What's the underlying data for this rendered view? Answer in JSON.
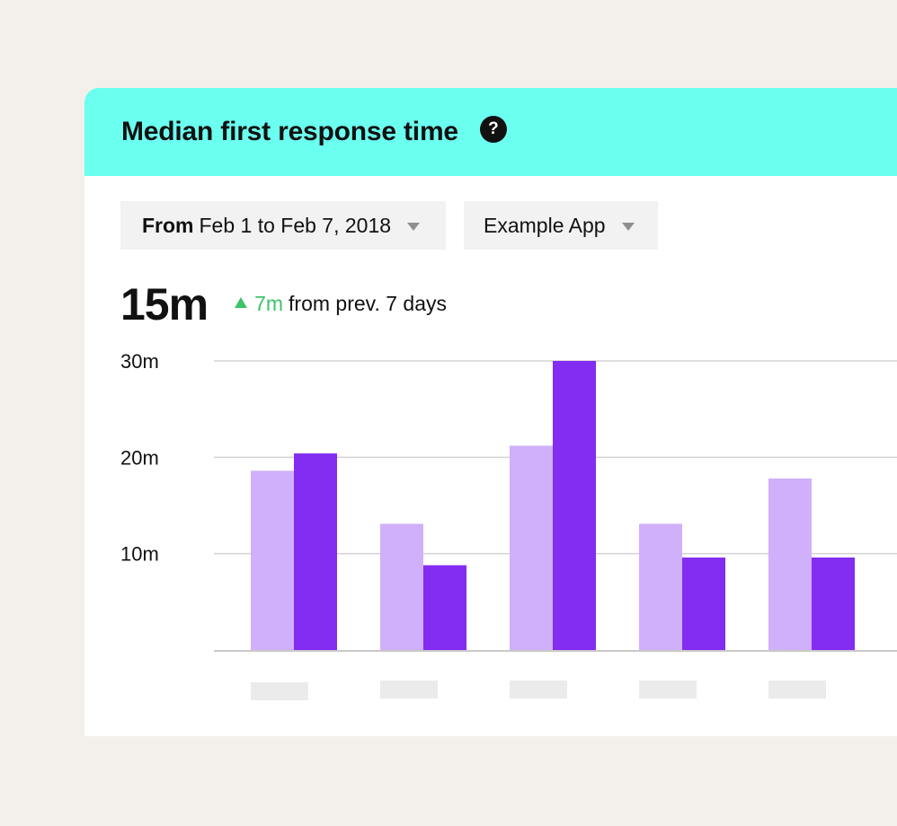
{
  "card": {
    "title": "Median first response time",
    "help_icon": "question-mark-icon",
    "header_color": "#6bfff0"
  },
  "filters": {
    "date_prefix": "From",
    "date_range": "Feb 1 to Feb 7, 2018",
    "app": "Example App"
  },
  "metric": {
    "value": "15m",
    "delta_value": "7m",
    "delta_text": "from prev. 7 days",
    "delta_direction": "up",
    "delta_color": "#3cc36a"
  },
  "chart_data": {
    "type": "bar",
    "categories": [
      "",
      "",
      "",
      "",
      ""
    ],
    "series": [
      {
        "values": [
          18.6,
          13.1,
          21.2,
          13.1,
          17.8
        ],
        "color": "#d0b0fb"
      },
      {
        "values": [
          20.4,
          8.8,
          30,
          9.6,
          9.6
        ],
        "color": "#832cf2"
      }
    ],
    "y_ticks": [
      "10m",
      "20m",
      "30m"
    ],
    "ylim": [
      0,
      30
    ],
    "grid": true,
    "legend": "none",
    "category_label_placeholders": true
  }
}
